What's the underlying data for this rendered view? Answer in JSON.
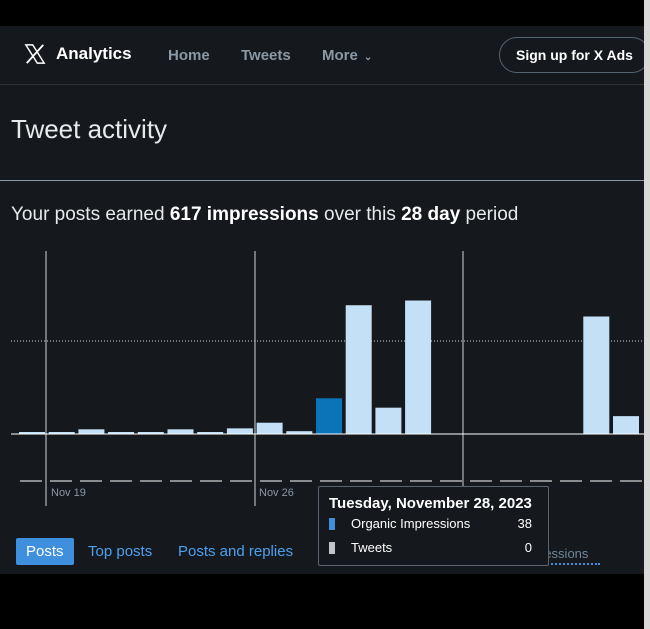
{
  "nav": {
    "brand": "Analytics",
    "links": [
      "Home",
      "Tweets",
      "More"
    ],
    "cta": "Sign up for X Ads"
  },
  "page": {
    "title": "Tweet activity",
    "summary": {
      "prefix": "Your posts earned ",
      "impressions": "617 impressions",
      "middle": " over this ",
      "period": "28 day",
      "suffix": " period"
    }
  },
  "chart_data": {
    "type": "bar",
    "x_tick_labels": [
      "Nov 19",
      "Nov 26"
    ],
    "series": [
      {
        "name": "Organic Impressions",
        "values": [
          2,
          2,
          5,
          1,
          2,
          5,
          1,
          6,
          12,
          3,
          38,
          137,
          28,
          142,
          0,
          0,
          0,
          0,
          0,
          125,
          19
        ]
      }
    ],
    "highlighted_index": 10,
    "colors": {
      "bar": "#c4e0f7",
      "highlight": "#0b74b8",
      "grid": "#cfd6dd"
    }
  },
  "tooltip": {
    "date": "Tuesday, November 28, 2023",
    "rows": [
      {
        "label": "Organic Impressions",
        "value": "38",
        "color": "#3f8fdf"
      },
      {
        "label": "Tweets",
        "value": "0",
        "color": "#bfc5cb"
      }
    ]
  },
  "tabs": {
    "items": [
      "Posts",
      "Top posts",
      "Posts and replies"
    ],
    "faded": "ressions"
  }
}
